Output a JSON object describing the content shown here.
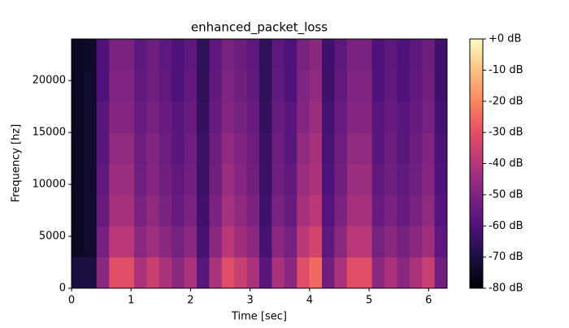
{
  "chart_data": {
    "type": "heatmap",
    "title": "enhanced_packet_loss",
    "x_label": "Time [sec]",
    "y_label": "Frequency [hz]",
    "xlim": [
      0,
      6.31
    ],
    "xticks": [
      0,
      1,
      2,
      3,
      4,
      5,
      6
    ],
    "ylim": [
      0,
      24000
    ],
    "yticks": [
      0,
      5000,
      10000,
      15000,
      20000
    ],
    "colormap": "magma",
    "zlim": [
      -80,
      0
    ],
    "zticks": [
      {
        "value": 0,
        "label": "+0 dB"
      },
      {
        "value": -10,
        "label": "-10 dB"
      },
      {
        "value": -20,
        "label": "-20 dB"
      },
      {
        "value": -30,
        "label": "-30 dB"
      },
      {
        "value": -40,
        "label": "-40 dB"
      },
      {
        "value": -50,
        "label": "-50 dB"
      },
      {
        "value": -60,
        "label": "-60 dB"
      },
      {
        "value": -70,
        "label": "-70 dB"
      },
      {
        "value": -80,
        "label": "-80 dB"
      }
    ],
    "z": [
      [
        -70,
        -70,
        -48,
        -31,
        -31,
        -42,
        -36,
        -42,
        -48,
        -42,
        -58,
        -42,
        -31,
        -36,
        -42,
        -58,
        -42,
        -48,
        -31,
        -25,
        -53,
        -42,
        -31,
        -31,
        -48,
        -42,
        -48,
        -42,
        -36,
        -53
      ],
      [
        -75,
        -73,
        -52,
        -39,
        -39,
        -48,
        -44,
        -48,
        -52,
        -48,
        -62,
        -48,
        -39,
        -44,
        -48,
        -62,
        -48,
        -52,
        -39,
        -34,
        -57,
        -48,
        -39,
        -39,
        -52,
        -48,
        -52,
        -48,
        -44,
        -57
      ],
      [
        -75,
        -73,
        -55,
        -43,
        -43,
        -51,
        -47,
        -51,
        -55,
        -51,
        -63,
        -51,
        -43,
        -47,
        -51,
        -63,
        -51,
        -55,
        -43,
        -39,
        -59,
        -51,
        -43,
        -43,
        -55,
        -51,
        -55,
        -51,
        -47,
        -59
      ],
      [
        -75,
        -73,
        -56,
        -45,
        -45,
        -53,
        -49,
        -53,
        -56,
        -53,
        -64,
        -53,
        -45,
        -49,
        -53,
        -64,
        -53,
        -56,
        -45,
        -42,
        -60,
        -53,
        -45,
        -45,
        -56,
        -53,
        -56,
        -53,
        -49,
        -60
      ],
      [
        -75,
        -73,
        -58,
        -47,
        -47,
        -54,
        -50,
        -54,
        -58,
        -54,
        -64,
        -54,
        -47,
        -50,
        -54,
        -64,
        -54,
        -58,
        -47,
        -43,
        -61,
        -54,
        -47,
        -47,
        -58,
        -54,
        -58,
        -54,
        -50,
        -61
      ],
      [
        -75,
        -73,
        -58,
        -49,
        -49,
        -55,
        -52,
        -55,
        -58,
        -55,
        -65,
        -55,
        -49,
        -52,
        -55,
        -65,
        -55,
        -58,
        -49,
        -45,
        -62,
        -55,
        -49,
        -49,
        -58,
        -55,
        -58,
        -55,
        -52,
        -62
      ],
      [
        -75,
        -73,
        -60,
        -50,
        -50,
        -56,
        -53,
        -56,
        -60,
        -56,
        -66,
        -56,
        -50,
        -53,
        -56,
        -66,
        -56,
        -60,
        -50,
        -47,
        -63,
        -56,
        -50,
        -50,
        -60,
        -56,
        -60,
        -56,
        -53,
        -63
      ],
      [
        -75,
        -74,
        -60,
        -51,
        -51,
        -57,
        -54,
        -57,
        -60,
        -57,
        -66,
        -57,
        -51,
        -54,
        -57,
        -66,
        -57,
        -60,
        -51,
        -48,
        -63,
        -57,
        -51,
        -51,
        -60,
        -57,
        -60,
        -57,
        -54,
        -63
      ]
    ]
  }
}
